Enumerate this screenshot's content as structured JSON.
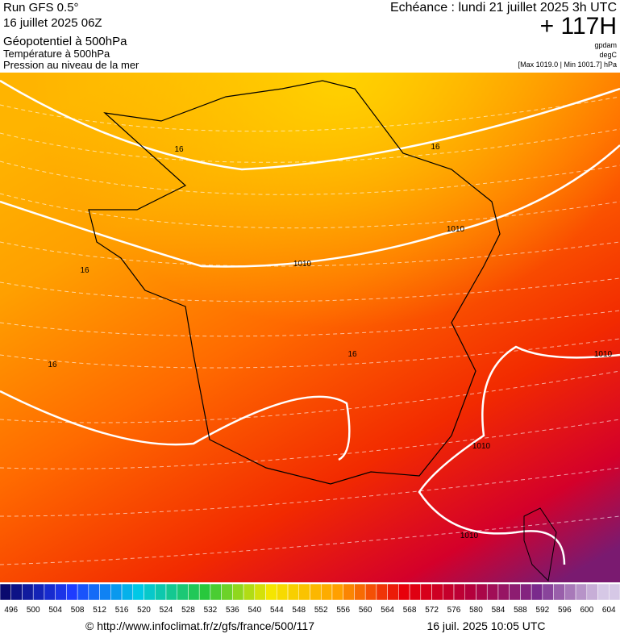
{
  "header": {
    "run": "Run GFS 0.5°",
    "date": "16 juillet 2025 06Z",
    "field1": "Géopotentiel à 500hPa",
    "field2": "Température à 500hPa",
    "field3": "Pression au niveau de la mer",
    "valid": "Echéance : lundi 21 juillet 2025 3h UTC",
    "lead": "+ 117H",
    "unit1": "gpdam",
    "unit2": "degC",
    "pressure_range": "[Max 1019.0 | Min 1001.7] hPa"
  },
  "map": {
    "contour_labels": [
      "1010",
      "1010",
      "1010",
      "1010",
      "1010",
      "16",
      "16",
      "16",
      "16",
      "16"
    ]
  },
  "legend": {
    "ticks": [
      496,
      500,
      504,
      508,
      512,
      516,
      520,
      524,
      528,
      532,
      536,
      540,
      544,
      548,
      552,
      556,
      560,
      564,
      568,
      572,
      576,
      580,
      584,
      588,
      592,
      596,
      600,
      604
    ]
  },
  "footer": {
    "url": "© http://www.infoclimat.fr/z/gfs/france/500/117",
    "timestamp": "16 juil. 2025 10:05 UTC"
  }
}
